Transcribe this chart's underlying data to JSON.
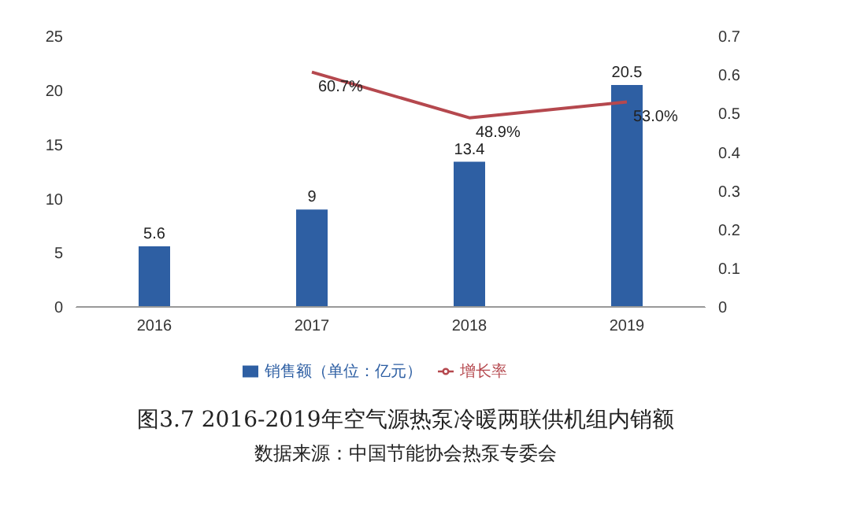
{
  "chart_data": {
    "type": "bar",
    "title": "图3.7 2016-2019年空气源热泵冷暖两联供机组内销额",
    "annotations": [
      "数据来源：中国节能协会热泵专委会"
    ],
    "categories": [
      "2016",
      "2017",
      "2018",
      "2019"
    ],
    "series": [
      {
        "name": "销售额（单位：亿元）",
        "color": "#2e5fa3",
        "values": [
          5.6,
          9,
          13.4,
          20.5
        ],
        "data_labels": true
      },
      {
        "name": "增长率",
        "type": "line",
        "axis": "y2",
        "color": "#b5484e",
        "values": [
          null,
          0.607,
          0.489,
          0.53
        ],
        "value_labels": [
          null,
          "60.7%",
          "48.9%",
          "53.0%"
        ]
      }
    ],
    "ylim": [
      0,
      25
    ],
    "yticks": [
      0,
      5,
      10,
      15,
      20,
      25
    ],
    "y2lim": [
      0,
      0.7
    ],
    "y2ticks": [
      0,
      0.1,
      0.2,
      0.3,
      0.4,
      0.5,
      0.6,
      0.7
    ],
    "grid": false,
    "legend": "bottom",
    "marker": "none"
  }
}
